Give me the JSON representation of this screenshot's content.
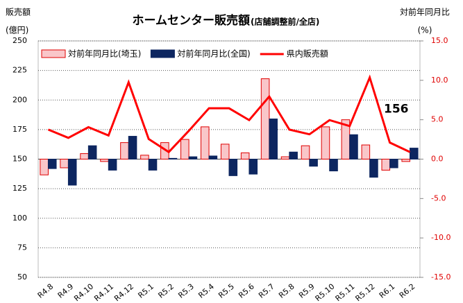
{
  "chart_data": {
    "type": "bar-line",
    "title": "ホームセンター販売額",
    "subtitle": "(店舗調整前/全店)",
    "y_label": "販売額",
    "y_unit": "(億円)",
    "y2_label": "対前年同月比",
    "y2_unit": "(%)",
    "categories": [
      "R4.8",
      "R4.9",
      "R4.10",
      "R4.11",
      "R4.12",
      "R5.1",
      "R5.2",
      "R5.3",
      "R5.4",
      "R5.5",
      "R5.6",
      "R5.7",
      "R5.8",
      "R5.9",
      "R5.10",
      "R5.11",
      "R5.12",
      "R6.1",
      "R6.2"
    ],
    "series": [
      {
        "name": "対前年同月比(埼玉)",
        "type": "bar",
        "axis": "y2",
        "color": "#f9c6c9",
        "edge": "#e00000",
        "values": [
          -2.0,
          -1.1,
          0.7,
          -0.3,
          2.1,
          0.5,
          2.1,
          2.5,
          4.1,
          1.9,
          0.8,
          10.2,
          0.3,
          1.7,
          4.1,
          5.0,
          1.8,
          -1.4,
          -0.3
        ]
      },
      {
        "name": "対前年同月比(全国)",
        "type": "bar",
        "axis": "y2",
        "color": "#0d2660",
        "values": [
          -1.2,
          -3.3,
          1.7,
          -1.4,
          2.9,
          -1.4,
          0.1,
          0.3,
          0.4,
          -2.1,
          -1.9,
          5.1,
          0.9,
          -0.9,
          -1.5,
          3.1,
          -2.3,
          -1.1,
          1.4
        ]
      },
      {
        "name": "県内販売額",
        "type": "line",
        "axis": "y",
        "color": "#ff0000",
        "values": [
          175,
          168,
          177,
          170,
          215,
          167,
          156,
          174,
          193,
          193,
          183,
          203,
          175,
          171,
          183,
          178,
          219,
          164,
          156
        ]
      }
    ],
    "ylim": [
      50,
      250
    ],
    "yticks": [
      50,
      75,
      100,
      125,
      150,
      175,
      200,
      225,
      250
    ],
    "y2lim": [
      -15,
      15
    ],
    "y2ticks": [
      {
        "value": -15,
        "label": "-15.0"
      },
      {
        "value": -10,
        "label": "-10.0"
      },
      {
        "value": -5,
        "label": "-5.0"
      },
      {
        "value": 0,
        "label": "0.0"
      },
      {
        "value": 5,
        "label": "5.0"
      },
      {
        "value": 10,
        "label": "10.0"
      },
      {
        "value": 15,
        "label": "15.0"
      }
    ],
    "grid": true
  }
}
